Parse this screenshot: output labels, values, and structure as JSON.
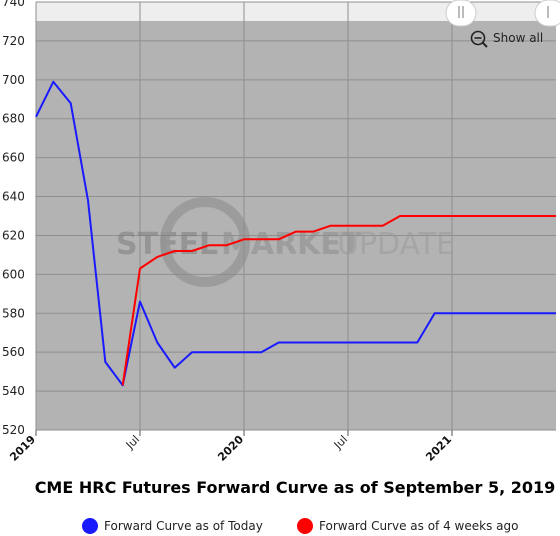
{
  "chart_data": {
    "type": "line",
    "title": "CME HRC Futures Forward Curve as of September 5, 2019",
    "xlabel": "",
    "ylabel": "",
    "ylim": [
      520,
      740
    ],
    "y_ticks": [
      "520",
      "540",
      "560",
      "580",
      "600",
      "620",
      "640",
      "660",
      "680",
      "700",
      "720",
      "740"
    ],
    "x_range": [
      "2019-01",
      "2021-07"
    ],
    "x_ticks": [
      {
        "label": "2019",
        "date": "2019-01",
        "bold": true
      },
      {
        "label": "Jul",
        "date": "2019-07",
        "bold": false
      },
      {
        "label": "2020",
        "date": "2020-01",
        "bold": true
      },
      {
        "label": "Jul",
        "date": "2020-07",
        "bold": false
      },
      {
        "label": "2021",
        "date": "2021-01",
        "bold": true
      }
    ],
    "grid": true,
    "legend_position": "bottom-center",
    "series": [
      {
        "name": "Forward Curve as of Today",
        "color": "#1a1aff",
        "points": [
          [
            "2019-01",
            681
          ],
          [
            "2019-02",
            699
          ],
          [
            "2019-03",
            688
          ],
          [
            "2019-04",
            638
          ],
          [
            "2019-05",
            555
          ],
          [
            "2019-06",
            543
          ],
          [
            "2019-07",
            586
          ],
          [
            "2019-08",
            565
          ],
          [
            "2019-09",
            552
          ],
          [
            "2019-10",
            560
          ],
          [
            "2019-11",
            560
          ],
          [
            "2019-12",
            560
          ],
          [
            "2020-01",
            560
          ],
          [
            "2020-02",
            560
          ],
          [
            "2020-03",
            565
          ],
          [
            "2020-04",
            565
          ],
          [
            "2020-05",
            565
          ],
          [
            "2020-06",
            565
          ],
          [
            "2020-07",
            565
          ],
          [
            "2020-08",
            565
          ],
          [
            "2020-09",
            565
          ],
          [
            "2020-10",
            565
          ],
          [
            "2020-11",
            565
          ],
          [
            "2020-12",
            580
          ],
          [
            "2021-01",
            580
          ],
          [
            "2021-02",
            580
          ],
          [
            "2021-03",
            580
          ],
          [
            "2021-04",
            580
          ],
          [
            "2021-05",
            580
          ],
          [
            "2021-06",
            580
          ],
          [
            "2021-07",
            580
          ]
        ]
      },
      {
        "name": "Forward Curve as of 4 weeks ago",
        "color": "#ff0000",
        "points": [
          [
            "2019-06",
            543
          ],
          [
            "2019-07",
            603
          ],
          [
            "2019-08",
            609
          ],
          [
            "2019-09",
            612
          ],
          [
            "2019-10",
            612
          ],
          [
            "2019-11",
            615
          ],
          [
            "2019-12",
            615
          ],
          [
            "2020-01",
            618
          ],
          [
            "2020-02",
            618
          ],
          [
            "2020-03",
            618
          ],
          [
            "2020-04",
            622
          ],
          [
            "2020-05",
            622
          ],
          [
            "2020-06",
            625
          ],
          [
            "2020-07",
            625
          ],
          [
            "2020-08",
            625
          ],
          [
            "2020-09",
            625
          ],
          [
            "2020-10",
            630
          ],
          [
            "2020-11",
            630
          ],
          [
            "2020-12",
            630
          ],
          [
            "2021-01",
            630
          ],
          [
            "2021-02",
            630
          ],
          [
            "2021-03",
            630
          ],
          [
            "2021-04",
            630
          ],
          [
            "2021-05",
            630
          ],
          [
            "2021-06",
            630
          ],
          [
            "2021-07",
            630
          ]
        ]
      }
    ]
  },
  "controls": {
    "show_all_label": "Show all",
    "show_all_icon": "zoom-out-icon",
    "navigator_handle_icon": "grip-handle-icon"
  },
  "watermark": {
    "text_left": "STEEL",
    "text_mid": "MARKET",
    "text_right": "UPDATE"
  },
  "colors": {
    "plot_background": "#b3b3b3",
    "grid": "#8f8f8f",
    "navigator_strip": "#eeeeee"
  }
}
